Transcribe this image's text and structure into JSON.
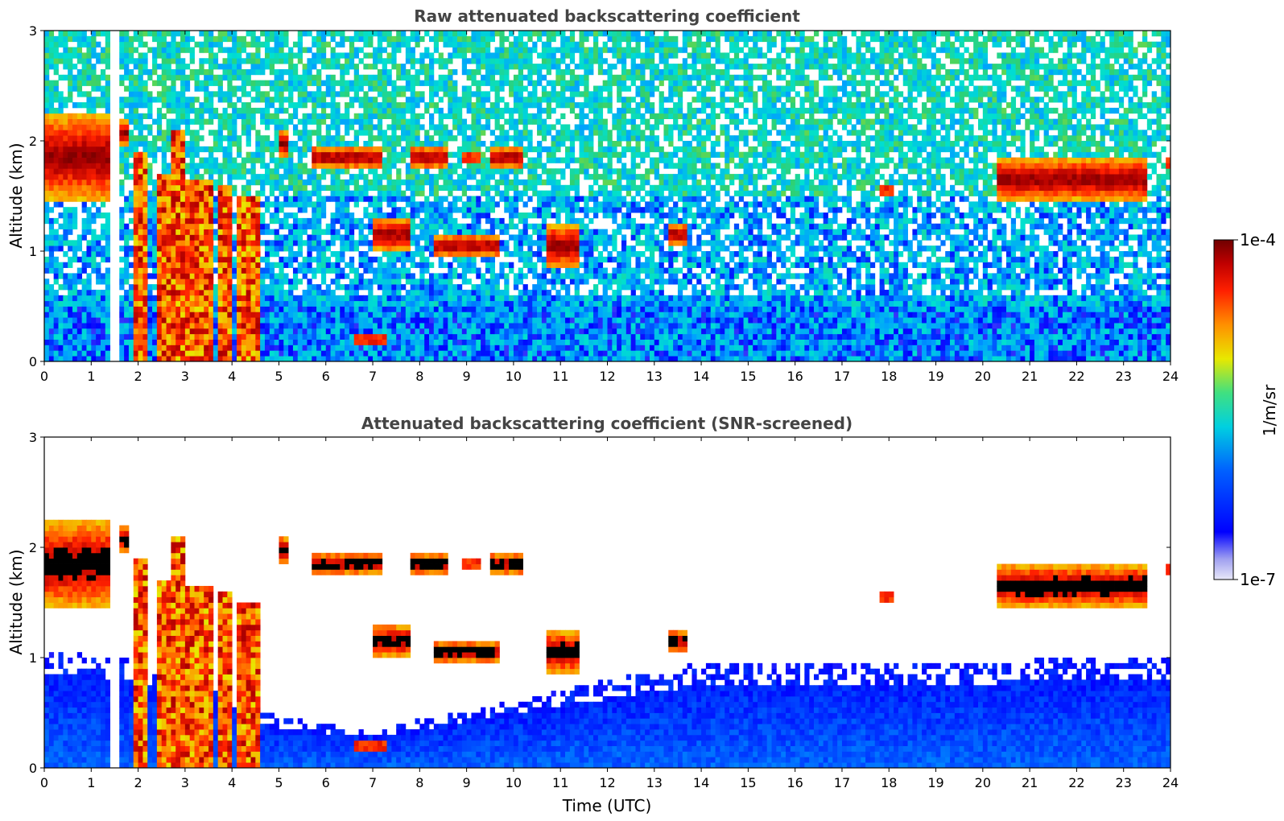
{
  "colors": {
    "background": "#ffffff",
    "title": "#444444",
    "colormap": [
      "#e4e4f4",
      "#0000ff",
      "#00a0ff",
      "#00e0d0",
      "#30d070",
      "#e8e800",
      "#ff9000",
      "#ff2000",
      "#b00000",
      "#700000"
    ],
    "screened_saturation": "#000000"
  },
  "chart_data": [
    {
      "type": "heatmap",
      "title": "Raw attenuated backscattering coefficient",
      "xlabel": "",
      "ylabel": "Altitude (km)",
      "xlim": [
        0,
        24
      ],
      "ylim": [
        0,
        3
      ],
      "x_ticks": [
        "0",
        "1",
        "2",
        "3",
        "4",
        "5",
        "6",
        "7",
        "8",
        "9",
        "10",
        "11",
        "12",
        "13",
        "14",
        "15",
        "16",
        "17",
        "18",
        "19",
        "20",
        "21",
        "22",
        "23",
        "24"
      ],
      "y_ticks": [
        "0",
        "1",
        "2",
        "3"
      ],
      "missing_data_times": [
        1.5
      ],
      "cloud_layers": [
        {
          "t0": 0.0,
          "t1": 1.4,
          "bottom": 1.45,
          "top": 2.25
        },
        {
          "t0": 1.55,
          "t1": 1.8,
          "bottom": 1.95,
          "top": 2.2
        },
        {
          "t0": 5.0,
          "t1": 5.2,
          "bottom": 1.85,
          "top": 2.1
        },
        {
          "t0": 5.7,
          "t1": 7.2,
          "bottom": 1.75,
          "top": 1.95
        },
        {
          "t0": 7.8,
          "t1": 8.6,
          "bottom": 1.75,
          "top": 1.95
        },
        {
          "t0": 8.9,
          "t1": 9.3,
          "bottom": 1.8,
          "top": 1.9
        },
        {
          "t0": 9.5,
          "t1": 10.2,
          "bottom": 1.75,
          "top": 1.95
        },
        {
          "t0": 7.0,
          "t1": 7.8,
          "bottom": 1.0,
          "top": 1.3
        },
        {
          "t0": 8.3,
          "t1": 9.7,
          "bottom": 0.95,
          "top": 1.15
        },
        {
          "t0": 10.7,
          "t1": 11.4,
          "bottom": 0.85,
          "top": 1.25
        },
        {
          "t0": 13.3,
          "t1": 13.7,
          "bottom": 1.05,
          "top": 1.25
        },
        {
          "t0": 17.8,
          "t1": 18.1,
          "bottom": 1.5,
          "top": 1.6
        },
        {
          "t0": 20.3,
          "t1": 23.5,
          "bottom": 1.45,
          "top": 1.85
        },
        {
          "t0": 23.9,
          "t1": 24.0,
          "bottom": 1.75,
          "top": 1.85
        },
        {
          "t0": 6.6,
          "t1": 7.3,
          "bottom": 0.15,
          "top": 0.25
        }
      ],
      "aerosol_columns": [
        {
          "t0": 1.9,
          "t1": 2.2,
          "top": 1.9
        },
        {
          "t0": 2.4,
          "t1": 2.7,
          "top": 1.7
        },
        {
          "t0": 2.75,
          "t1": 2.95,
          "top": 2.1
        },
        {
          "t0": 3.0,
          "t1": 3.6,
          "top": 1.65
        },
        {
          "t0": 3.7,
          "t1": 3.95,
          "top": 1.6
        },
        {
          "t0": 4.1,
          "t1": 4.6,
          "top": 1.5
        }
      ]
    },
    {
      "type": "heatmap",
      "title": "Attenuated backscattering coefficient (SNR-screened)",
      "xlabel": "Time (UTC)",
      "ylabel": "Altitude (km)",
      "xlim": [
        0,
        24
      ],
      "ylim": [
        0,
        3
      ],
      "x_ticks": [
        "0",
        "1",
        "2",
        "3",
        "4",
        "5",
        "6",
        "7",
        "8",
        "9",
        "10",
        "11",
        "12",
        "13",
        "14",
        "15",
        "16",
        "17",
        "18",
        "19",
        "20",
        "21",
        "22",
        "23",
        "24"
      ],
      "y_ticks": [
        "0",
        "1",
        "2",
        "3"
      ],
      "missing_data_times": [
        1.5
      ],
      "screened_boundary_layer": [
        {
          "t": 0.0,
          "top": 1.05
        },
        {
          "t": 2.0,
          "top": 1.0
        },
        {
          "t": 5.0,
          "top": 0.45
        },
        {
          "t": 7.0,
          "top": 0.35
        },
        {
          "t": 11.5,
          "top": 0.75
        },
        {
          "t": 14.0,
          "top": 0.95
        },
        {
          "t": 18.0,
          "top": 0.95
        },
        {
          "t": 24.0,
          "top": 1.0
        }
      ]
    }
  ],
  "colorbar": {
    "label": "1/m/sr",
    "max_label": "1e-4",
    "min_label": "1e-7",
    "scale": "log",
    "range": [
      1e-07,
      0.0001
    ]
  }
}
